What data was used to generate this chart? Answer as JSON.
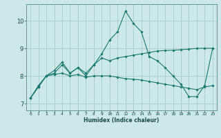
{
  "xlabel": "Humidex (Indice chaleur)",
  "ylabel": "",
  "background_color": "#cce8e8",
  "grid_color": "#aacece",
  "line_color": "#1a7a6e",
  "x_ticks": [
    0,
    1,
    2,
    3,
    4,
    5,
    6,
    7,
    8,
    9,
    10,
    11,
    12,
    13,
    14,
    15,
    16,
    17,
    18,
    19,
    20,
    21,
    22,
    23
  ],
  "ylim": [
    6.75,
    10.6
  ],
  "xlim": [
    -0.5,
    23.5
  ],
  "yticks": [
    7,
    8,
    9,
    10
  ],
  "lines": [
    {
      "x": [
        0,
        1,
        2,
        3,
        4,
        5,
        6,
        7,
        8,
        9,
        10,
        11,
        12,
        13,
        14,
        15,
        16,
        17,
        18,
        19,
        20,
        21,
        22,
        23
      ],
      "y": [
        7.2,
        7.6,
        8.0,
        8.1,
        8.4,
        8.1,
        8.3,
        8.0,
        8.4,
        8.8,
        9.3,
        9.6,
        10.35,
        9.9,
        9.6,
        8.7,
        8.55,
        8.3,
        8.0,
        7.7,
        7.25,
        7.25,
        7.65,
        9.0
      ]
    },
    {
      "x": [
        0,
        1,
        2,
        3,
        4,
        5,
        6,
        7,
        8,
        9,
        10,
        11,
        12,
        13,
        14,
        15,
        16,
        17,
        18,
        19,
        20,
        21,
        22,
        23
      ],
      "y": [
        7.2,
        7.6,
        8.0,
        8.2,
        8.5,
        8.1,
        8.3,
        8.1,
        8.4,
        8.65,
        8.55,
        8.65,
        8.7,
        8.75,
        8.8,
        8.85,
        8.9,
        8.92,
        8.93,
        8.95,
        8.97,
        9.0,
        9.0,
        9.0
      ]
    },
    {
      "x": [
        0,
        1,
        2,
        3,
        4,
        5,
        6,
        7,
        8,
        9,
        10,
        11,
        12,
        13,
        14,
        15,
        16,
        17,
        18,
        19,
        20,
        21,
        22,
        23
      ],
      "y": [
        7.2,
        7.65,
        8.0,
        8.05,
        8.1,
        8.0,
        8.05,
        7.95,
        8.0,
        8.0,
        8.0,
        7.95,
        7.9,
        7.88,
        7.85,
        7.8,
        7.75,
        7.7,
        7.65,
        7.6,
        7.55,
        7.5,
        7.6,
        7.65
      ]
    }
  ]
}
